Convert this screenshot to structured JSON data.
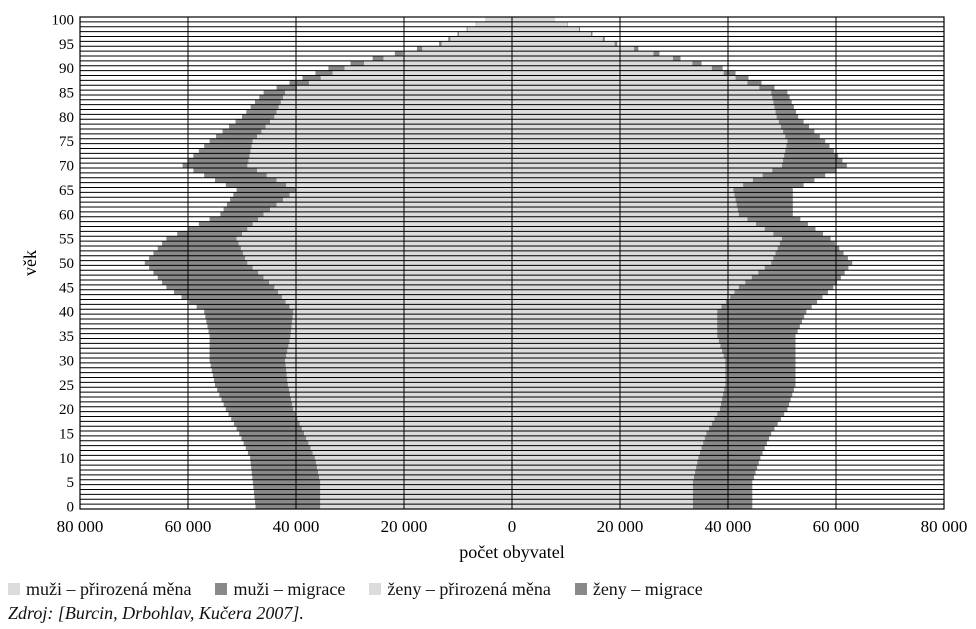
{
  "chart_data": {
    "type": "bar",
    "orientation": "horizontal-population-pyramid",
    "xlabel": "počet obyvatel",
    "ylabel": "věk",
    "x_ticks": [
      80000,
      60000,
      40000,
      20000,
      0,
      20000,
      40000,
      60000,
      80000
    ],
    "x_tick_labels": [
      "80 000",
      "60 000",
      "40 000",
      "20 000",
      "0",
      "20 000",
      "40 000",
      "60 000",
      "80 000"
    ],
    "y_ticks": [
      0,
      5,
      10,
      15,
      20,
      25,
      30,
      35,
      40,
      45,
      50,
      55,
      60,
      65,
      70,
      75,
      80,
      85,
      90,
      95,
      100
    ],
    "y_tick_labels": [
      "0",
      "5",
      "10",
      "15",
      "20",
      "25",
      "30",
      "35",
      "40",
      "45",
      "50",
      "55",
      "60",
      "65",
      "70",
      "75",
      "80",
      "85",
      "90",
      "95",
      "100"
    ],
    "xlim": [
      -80000,
      80000
    ],
    "ylim": [
      0,
      100
    ],
    "grid": "vertical gridlines at 20 000 intervals",
    "legend_position": "bottom",
    "ages": [
      0,
      5,
      10,
      15,
      20,
      25,
      30,
      35,
      40,
      45,
      50,
      55,
      60,
      65,
      70,
      75,
      80,
      85,
      90,
      95,
      100
    ],
    "series": [
      {
        "name": "muži – přirozená měna",
        "side": "left",
        "color": "#dcdcdc",
        "values": [
          35500,
          35500,
          36500,
          38500,
          40500,
          41500,
          42000,
          41000,
          40500,
          44000,
          49000,
          51000,
          46000,
          40000,
          49000,
          48000,
          44000,
          42000,
          31000,
          13000,
          5000
        ]
      },
      {
        "name": "muži – migrace",
        "side": "left",
        "color": "#898989",
        "values": [
          12000,
          12500,
          12000,
          12000,
          12500,
          13500,
          14000,
          15000,
          16500,
          20000,
          19000,
          13000,
          8000,
          11000,
          12000,
          8000,
          6000,
          4000,
          3000,
          500,
          0
        ]
      },
      {
        "name": "ženy – přirozená měna",
        "side": "right",
        "color": "#dcdcdc",
        "values": [
          33500,
          33500,
          34500,
          36000,
          38500,
          39500,
          39500,
          38000,
          38000,
          42000,
          48000,
          50000,
          42000,
          41000,
          50000,
          51000,
          49000,
          48000,
          37000,
          19000,
          8000
        ]
      },
      {
        "name": "ženy – migrace",
        "side": "right",
        "color": "#898989",
        "values": [
          11000,
          11000,
          11500,
          12000,
          12500,
          13000,
          13000,
          14500,
          16500,
          17500,
          15000,
          9000,
          10000,
          11000,
          12000,
          7000,
          4000,
          3000,
          2000,
          500,
          0
        ]
      }
    ]
  },
  "legend": [
    {
      "label": "muži – přirozená měna",
      "color": "#dcdcdc"
    },
    {
      "label": "muži – migrace",
      "color": "#898989"
    },
    {
      "label": "ženy – přirozená měna",
      "color": "#dcdcdc"
    },
    {
      "label": "ženy – migrace",
      "color": "#898989"
    }
  ],
  "source": "Zdroj: [Burcin, Drbohlav, Kučera 2007]."
}
